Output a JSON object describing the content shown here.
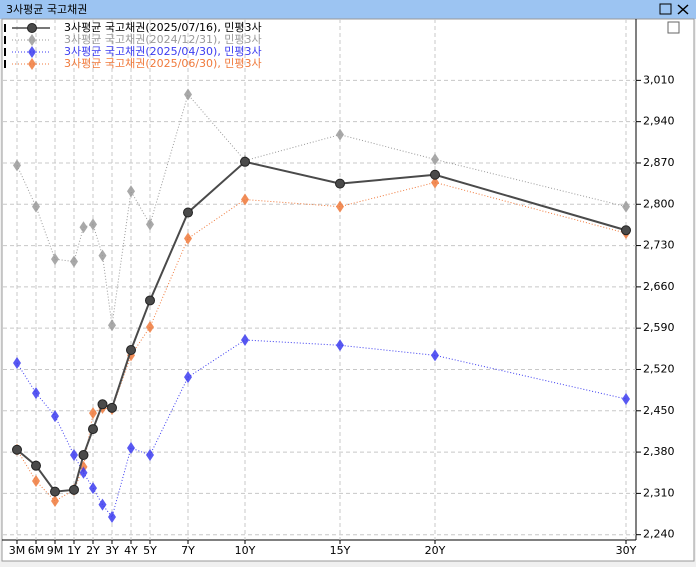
{
  "window_title": "3사평균 국고채권",
  "chart_data": {
    "type": "line",
    "categories": [
      "3M",
      "6M",
      "9M",
      "1Y",
      null,
      "2Y",
      null,
      "3Y",
      "4Y",
      "5Y",
      "7Y",
      "10Y",
      "15Y",
      "20Y",
      "30Y"
    ],
    "ylim": [
      2231,
      3114
    ],
    "yticks": [
      {
        "value": 2240,
        "label": "2,240"
      },
      {
        "value": 2310,
        "label": "2,310"
      },
      {
        "value": 2380,
        "label": "2,380"
      },
      {
        "value": 2450,
        "label": "2,450"
      },
      {
        "value": 2520,
        "label": "2,520"
      },
      {
        "value": 2590,
        "label": "2,590"
      },
      {
        "value": 2660,
        "label": "2,660"
      },
      {
        "value": 2730,
        "label": "2,730"
      },
      {
        "value": 2800,
        "label": "2,800"
      },
      {
        "value": 2870,
        "label": "2,870"
      },
      {
        "value": 2940,
        "label": "2,940"
      },
      {
        "value": 3010,
        "label": "3,010"
      }
    ],
    "grid": true,
    "series": [
      {
        "name": "3사평균 국고채권(2025/07/16), 민평3사",
        "color": "#4a4a4a",
        "marker": "circle",
        "dash": false,
        "values": [
          2384,
          2357,
          2313,
          2316,
          2375,
          2419,
          2461,
          2455,
          2553,
          2637,
          2786,
          2872,
          2835,
          2850,
          2756
        ]
      },
      {
        "name": "3사평균 국고채권(2024/12/31), 민평3사",
        "color": "#9a9a9a",
        "marker": "diamond",
        "dash": true,
        "values": [
          2866,
          2796,
          2707,
          2703,
          2761,
          2766,
          2713,
          2595,
          2822,
          2766,
          2986,
          2874,
          2918,
          2876,
          2796
        ]
      },
      {
        "name": "3사평균 국고채권(2025/04/30), 민평3사",
        "color": "#3c3cf0",
        "marker": "diamond",
        "dash": true,
        "values": [
          2531,
          2480,
          2441,
          2375,
          2345,
          2319,
          2291,
          2270,
          2387,
          2375,
          2507,
          2570,
          2561,
          2544,
          2470
        ]
      },
      {
        "name": "3사평균 국고채권(2025/06/30), 민평3사",
        "color": "#f07a3c",
        "marker": "diamond",
        "dash": true,
        "values": [
          2384,
          2331,
          2297,
          2316,
          2355,
          2446,
          2455,
          2453,
          2544,
          2592,
          2742,
          2808,
          2796,
          2837,
          2751
        ]
      }
    ]
  }
}
